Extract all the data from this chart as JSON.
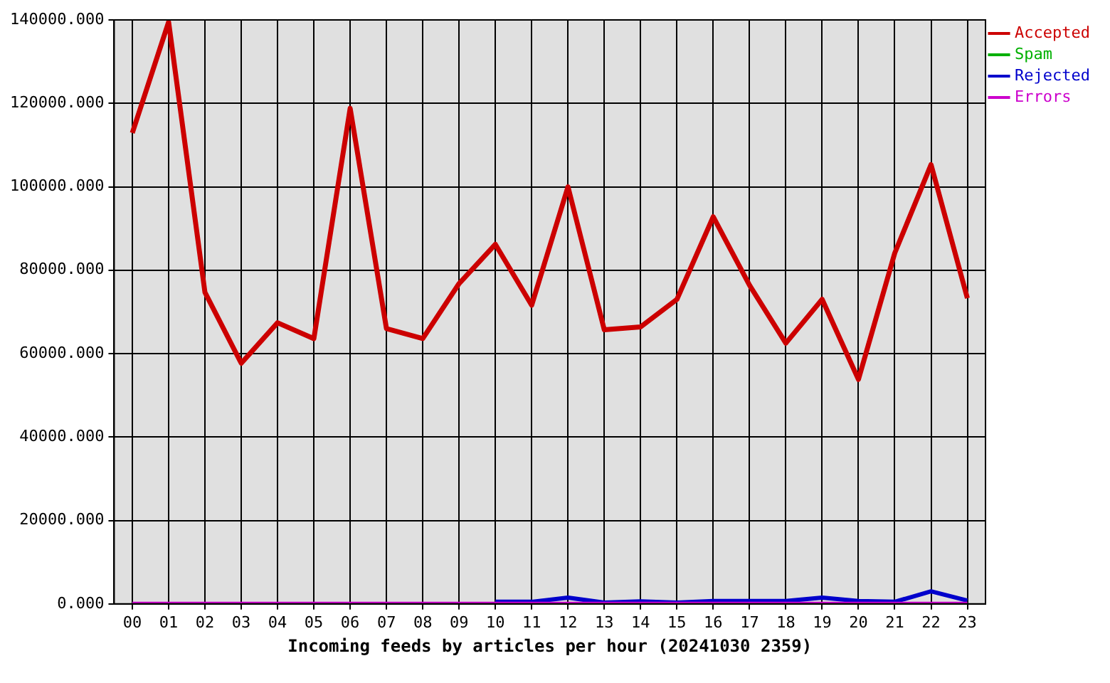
{
  "chart_data": {
    "type": "line",
    "xlabel": "Incoming feeds by articles per hour (20241030 2359)",
    "categories": [
      "00",
      "01",
      "02",
      "03",
      "04",
      "05",
      "06",
      "07",
      "08",
      "09",
      "10",
      "11",
      "12",
      "13",
      "14",
      "15",
      "16",
      "17",
      "18",
      "19",
      "20",
      "21",
      "22",
      "23"
    ],
    "series": [
      {
        "name": "Accepted",
        "color": "#cc0000",
        "values": [
          112900,
          139500,
          74700,
          57700,
          67400,
          63600,
          118800,
          66000,
          63600,
          76800,
          86200,
          71600,
          100000,
          65700,
          66400,
          73000,
          92800,
          76400,
          62500,
          73000,
          53800,
          84100,
          105300,
          73300
        ]
      },
      {
        "name": "Spam",
        "color": "#00b000",
        "values": [
          null,
          null,
          null,
          null,
          null,
          null,
          null,
          null,
          null,
          null,
          null,
          null,
          null,
          null,
          null,
          null,
          null,
          null,
          null,
          null,
          null,
          null,
          null,
          null
        ]
      },
      {
        "name": "Rejected",
        "color": "#0000cc",
        "values": [
          null,
          null,
          null,
          null,
          null,
          null,
          null,
          null,
          null,
          null,
          500,
          500,
          1500,
          300,
          600,
          300,
          700,
          700,
          700,
          1500,
          700,
          500,
          3000,
          800
        ]
      },
      {
        "name": "Errors",
        "color": "#cc00cc",
        "values": [
          0,
          0,
          0,
          0,
          0,
          0,
          0,
          0,
          0,
          0,
          0,
          0,
          0,
          0,
          0,
          0,
          0,
          0,
          0,
          0,
          0,
          0,
          0,
          0
        ]
      }
    ],
    "ylim": [
      0,
      140000
    ],
    "yticks": [
      {
        "value": 0,
        "label": "0.000"
      },
      {
        "value": 20000,
        "label": "20000.000"
      },
      {
        "value": 40000,
        "label": "40000.000"
      },
      {
        "value": 60000,
        "label": "60000.000"
      },
      {
        "value": 80000,
        "label": "80000.000"
      },
      {
        "value": 100000,
        "label": "100000.000"
      },
      {
        "value": 120000,
        "label": "120000.000"
      },
      {
        "value": 140000,
        "label": "140000.000"
      }
    ],
    "grid": true,
    "legend": "top right",
    "marker": "none",
    "line_style": "solid"
  }
}
